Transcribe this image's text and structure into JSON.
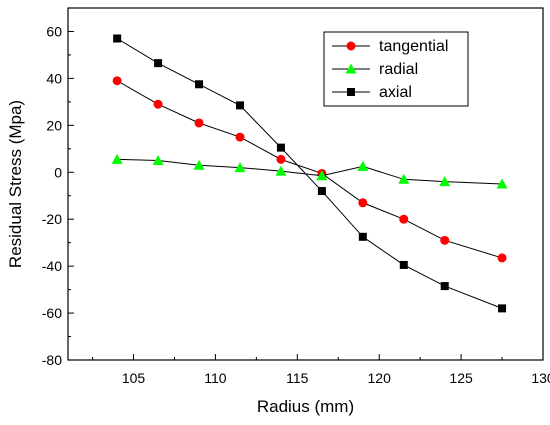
{
  "chart_data": {
    "type": "line",
    "title": "",
    "xlabel": "Radius (mm)",
    "ylabel": "Residual Stress (Mpa)",
    "xlim": [
      101,
      130
    ],
    "ylim": [
      -80,
      70
    ],
    "xticks": [
      105,
      110,
      115,
      120,
      125,
      130
    ],
    "yticks": [
      -80,
      -60,
      -40,
      -20,
      0,
      20,
      40,
      60
    ],
    "grid": false,
    "legend_position": "top-right",
    "x": [
      104,
      106.5,
      109,
      111.5,
      114,
      116.5,
      119,
      121.5,
      124,
      127.5
    ],
    "series": [
      {
        "name": "tangential",
        "marker": "circle",
        "color": "#ff0000",
        "values": [
          39,
          29,
          21,
          15,
          5.5,
          -0.5,
          -13,
          -20,
          -29,
          -36.5
        ]
      },
      {
        "name": "radial",
        "marker": "triangle",
        "color": "#00ff00",
        "values": [
          5.5,
          5,
          3,
          2,
          0.5,
          -1.5,
          2.5,
          -3,
          -4,
          -5
        ]
      },
      {
        "name": "axial",
        "marker": "square",
        "color": "#000000",
        "values": [
          57,
          46.5,
          37.5,
          28.5,
          10.5,
          -8,
          -27.5,
          -39.5,
          -48.5,
          -58
        ]
      }
    ]
  }
}
